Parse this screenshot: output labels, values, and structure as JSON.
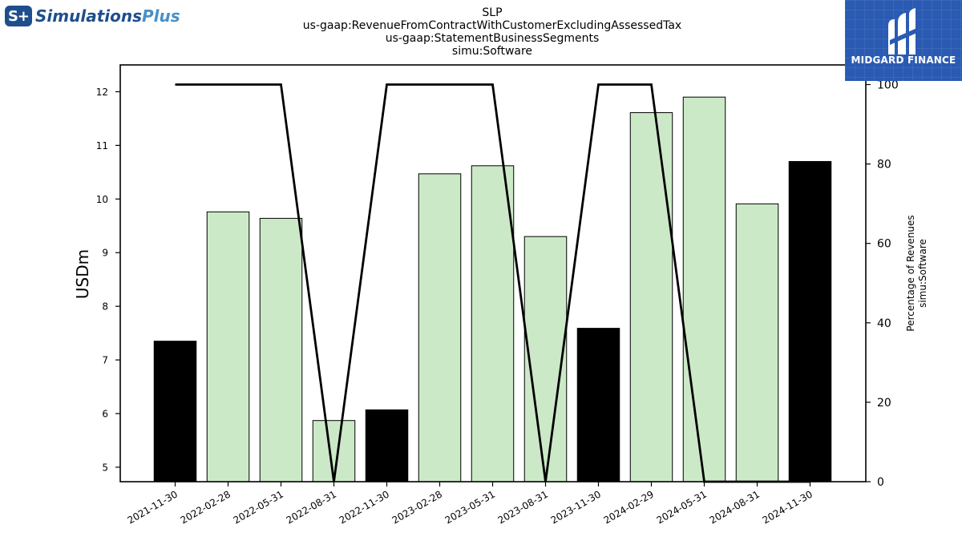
{
  "header": {
    "brand_left": "Simulations",
    "brand_left_plus": "Plus",
    "brand_badge": "S+",
    "brand_right": "MIDGARD FINANCE"
  },
  "colors": {
    "bar_highlight": "#000000",
    "bar_normal": "#cce9c7",
    "line": "#000000",
    "brand_blue": "#1f4e8c",
    "brand_right_bg": "#2a5ab2"
  },
  "chart_data": {
    "type": "bar",
    "title_lines": [
      "SLP",
      "us-gaap:RevenueFromContractWithCustomerExcludingAssessedTax",
      "us-gaap:StatementBusinessSegments",
      "simu:Software"
    ],
    "categories": [
      "2021-11-30",
      "2022-02-28",
      "2022-05-31",
      "2022-08-31",
      "2022-11-30",
      "2023-02-28",
      "2023-05-31",
      "2023-08-31",
      "2023-11-30",
      "2024-02-29",
      "2024-05-31",
      "2024-08-31",
      "2024-11-30"
    ],
    "series": [
      {
        "values": [
          7.35,
          9.76,
          9.64,
          5.87,
          6.07,
          10.47,
          10.62,
          9.3,
          7.59,
          11.61,
          11.9,
          9.91,
          10.7
        ],
        "highlight": [
          true,
          false,
          false,
          false,
          true,
          false,
          false,
          false,
          true,
          false,
          false,
          false,
          true
        ]
      },
      {
        "values": [
          100,
          100,
          100,
          0,
          100,
          100,
          100,
          0,
          100,
          100,
          0,
          0,
          0
        ],
        "axis": "right",
        "kind": "line"
      }
    ],
    "ylabel": "USDm",
    "ylabel_right": [
      "Percentage of Revenues",
      "simu:Software"
    ],
    "ylim": [
      4.73,
      12.5
    ],
    "yticks": [
      5,
      6,
      7,
      8,
      9,
      10,
      11,
      12
    ],
    "ylim_right": [
      0,
      100
    ],
    "yticks_right": [
      0,
      20,
      40,
      60,
      80,
      100
    ],
    "grid": false
  }
}
